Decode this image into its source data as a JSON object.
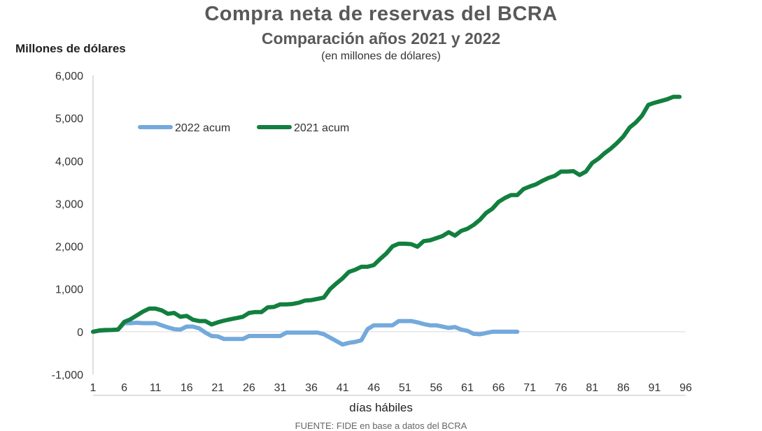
{
  "chart_data": {
    "type": "line",
    "title": "Compra neta de reservas del BCRA",
    "subtitle": "Comparación años 2021 y 2022",
    "units_note": "(en millones de dólares)",
    "ylabel": "Millones de dólares",
    "xlabel": "días hábiles",
    "source_note": "FUENTE: FIDE en base a datos del BCRA",
    "ylim": [
      -1000,
      6000
    ],
    "xlim": [
      1,
      96
    ],
    "y_ticks": [
      "-1,000",
      "0",
      "1,000",
      "2,000",
      "3,000",
      "4,000",
      "5,000",
      "6,000"
    ],
    "y_tick_values": [
      -1000,
      0,
      1000,
      2000,
      3000,
      4000,
      5000,
      6000
    ],
    "x_ticks": [
      "1",
      "6",
      "11",
      "16",
      "21",
      "26",
      "31",
      "36",
      "41",
      "46",
      "51",
      "56",
      "61",
      "66",
      "71",
      "76",
      "81",
      "86",
      "91",
      "96"
    ],
    "x_tick_values": [
      1,
      6,
      11,
      16,
      21,
      26,
      31,
      36,
      41,
      46,
      51,
      56,
      61,
      66,
      71,
      76,
      81,
      86,
      91,
      96
    ],
    "legend_position": "top-left",
    "series": [
      {
        "name": "2022 acum",
        "color": "#74a9dc",
        "x": [
          1,
          2,
          3,
          4,
          5,
          6,
          7,
          8,
          9,
          10,
          11,
          12,
          13,
          14,
          15,
          16,
          17,
          18,
          19,
          20,
          21,
          22,
          23,
          24,
          25,
          26,
          27,
          28,
          29,
          30,
          31,
          32,
          33,
          34,
          35,
          36,
          37,
          38,
          39,
          40,
          41,
          42,
          43,
          44,
          45,
          46,
          47,
          48,
          49,
          50,
          51,
          52,
          53,
          54,
          55,
          56,
          57,
          58,
          59,
          60,
          61,
          62,
          63,
          64,
          65,
          66,
          67,
          68,
          69
        ],
        "values": [
          0,
          20,
          30,
          40,
          50,
          200,
          200,
          210,
          200,
          200,
          200,
          150,
          100,
          60,
          50,
          120,
          120,
          80,
          -20,
          -100,
          -110,
          -170,
          -170,
          -170,
          -170,
          -100,
          -100,
          -100,
          -100,
          -100,
          -100,
          -20,
          -20,
          -20,
          -20,
          -20,
          -20,
          -60,
          -140,
          -220,
          -300,
          -260,
          -240,
          -200,
          60,
          150,
          150,
          150,
          150,
          250,
          250,
          250,
          220,
          180,
          150,
          150,
          120,
          90,
          110,
          50,
          20,
          -50,
          -60,
          -30,
          0,
          0,
          0,
          0,
          0
        ]
      },
      {
        "name": "2021 acum",
        "color": "#127f3f",
        "x": [
          1,
          2,
          3,
          4,
          5,
          6,
          7,
          8,
          9,
          10,
          11,
          12,
          13,
          14,
          15,
          16,
          17,
          18,
          19,
          20,
          21,
          22,
          23,
          24,
          25,
          26,
          27,
          28,
          29,
          30,
          31,
          32,
          33,
          34,
          35,
          36,
          37,
          38,
          39,
          40,
          41,
          42,
          43,
          44,
          45,
          46,
          47,
          48,
          49,
          50,
          51,
          52,
          53,
          54,
          55,
          56,
          57,
          58,
          59,
          60,
          61,
          62,
          63,
          64,
          65,
          66,
          67,
          68,
          69,
          70,
          71,
          72,
          73,
          74,
          75,
          76,
          77,
          78,
          79,
          80,
          81,
          82,
          83,
          84,
          85,
          86,
          87,
          88,
          89,
          90,
          91,
          92,
          93,
          94,
          95
        ],
        "values": [
          0,
          30,
          40,
          40,
          50,
          230,
          290,
          380,
          470,
          540,
          540,
          500,
          420,
          440,
          350,
          370,
          280,
          250,
          250,
          170,
          220,
          260,
          290,
          320,
          350,
          440,
          460,
          460,
          570,
          580,
          640,
          640,
          650,
          680,
          730,
          740,
          770,
          800,
          1000,
          1130,
          1250,
          1400,
          1450,
          1520,
          1520,
          1560,
          1700,
          1830,
          2000,
          2060,
          2060,
          2050,
          1990,
          2120,
          2140,
          2190,
          2240,
          2330,
          2250,
          2360,
          2410,
          2500,
          2620,
          2780,
          2880,
          3040,
          3130,
          3200,
          3200,
          3340,
          3400,
          3450,
          3530,
          3600,
          3650,
          3750,
          3750,
          3760,
          3670,
          3750,
          3950,
          4050,
          4180,
          4290,
          4420,
          4570,
          4780,
          4900,
          5060,
          5310,
          5360,
          5400,
          5440,
          5500,
          5500
        ]
      }
    ]
  }
}
